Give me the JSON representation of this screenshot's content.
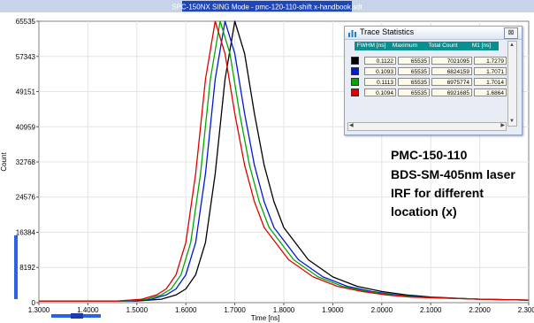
{
  "window_title": "SPC-150NX  SING Mode - pmc-120-110-shift x-handbook.sdt",
  "chart_data": {
    "type": "line",
    "title": "",
    "xlabel": "Time [ns]",
    "ylabel": "Count",
    "xlim": [
      1.3,
      2.3
    ],
    "ylim": [
      0,
      65535
    ],
    "x_ticks": [
      "1.3000",
      "1.4000",
      "1.5000",
      "1.6000",
      "1.7000",
      "1.8000",
      "1.9000",
      "2.0000",
      "2.1000",
      "2.2000",
      "2.3000"
    ],
    "y_ticks": [
      "0",
      "8192",
      "16384",
      "24576",
      "32768",
      "40959",
      "49151",
      "57343",
      "65535"
    ],
    "grid": true,
    "background": "#ffffff",
    "series": [
      {
        "color": "#000000",
        "x": [
          1.3,
          1.5,
          1.55,
          1.58,
          1.6,
          1.62,
          1.64,
          1.66,
          1.68,
          1.7,
          1.72,
          1.74,
          1.76,
          1.78,
          1.8,
          1.85,
          1.9,
          1.95,
          2.0,
          2.05,
          2.1,
          2.2,
          2.3
        ],
        "y": [
          400,
          400,
          800,
          1800,
          3200,
          6500,
          14000,
          30000,
          52000,
          65535,
          58000,
          44000,
          32000,
          23500,
          17500,
          10000,
          6000,
          3800,
          2600,
          1800,
          1300,
          800,
          600
        ]
      },
      {
        "color": "#0018d8",
        "x": [
          1.3,
          1.48,
          1.53,
          1.56,
          1.58,
          1.6,
          1.62,
          1.64,
          1.66,
          1.68,
          1.7,
          1.72,
          1.74,
          1.76,
          1.78,
          1.83,
          1.88,
          1.93,
          1.98,
          2.03,
          2.08,
          2.2,
          2.3
        ],
        "y": [
          400,
          400,
          800,
          1800,
          3200,
          6500,
          14000,
          30000,
          52000,
          65535,
          58000,
          44000,
          32000,
          23500,
          17500,
          10000,
          6000,
          3800,
          2600,
          1800,
          1300,
          800,
          600
        ]
      },
      {
        "color": "#00a800",
        "x": [
          1.3,
          1.47,
          1.52,
          1.55,
          1.57,
          1.59,
          1.61,
          1.63,
          1.65,
          1.67,
          1.69,
          1.71,
          1.73,
          1.75,
          1.77,
          1.82,
          1.87,
          1.92,
          1.97,
          2.02,
          2.07,
          2.2,
          2.3
        ],
        "y": [
          400,
          400,
          800,
          1800,
          3200,
          6500,
          14000,
          30000,
          52000,
          65535,
          58000,
          44000,
          32000,
          23500,
          17500,
          10000,
          6000,
          3800,
          2600,
          1800,
          1300,
          800,
          600
        ]
      },
      {
        "color": "#e00000",
        "x": [
          1.3,
          1.46,
          1.51,
          1.54,
          1.56,
          1.58,
          1.6,
          1.62,
          1.64,
          1.66,
          1.68,
          1.7,
          1.72,
          1.74,
          1.76,
          1.81,
          1.86,
          1.91,
          1.96,
          2.01,
          2.06,
          2.2,
          2.3
        ],
        "y": [
          400,
          400,
          800,
          1800,
          3200,
          6500,
          14000,
          30000,
          52000,
          65535,
          58000,
          44000,
          32000,
          23500,
          17500,
          10000,
          6000,
          3800,
          2600,
          1800,
          1300,
          800,
          600
        ]
      }
    ]
  },
  "annotation": {
    "line1": "PMC-150-110",
    "line2": "BDS-SM-405nm laser",
    "line3": "IRF for different",
    "line4": "location (x)"
  },
  "trace_statistics": {
    "title": "Trace Statistics",
    "close_label": "⊠",
    "headers": [
      "FWHM [ns]",
      "Maximum",
      "Total Count",
      "M1 [ns]"
    ],
    "rows": [
      {
        "color": "#000000",
        "values": [
          "0.1122",
          "65535",
          "7021095",
          "1.7279"
        ]
      },
      {
        "color": "#0018d8",
        "values": [
          "0.1093",
          "65535",
          "6824159",
          "1.7071"
        ]
      },
      {
        "color": "#00a800",
        "values": [
          "0.1113",
          "65535",
          "6975774",
          "1.7014"
        ]
      },
      {
        "color": "#e00000",
        "values": [
          "0.1094",
          "65535",
          "6921685",
          "1.6864"
        ]
      }
    ]
  }
}
